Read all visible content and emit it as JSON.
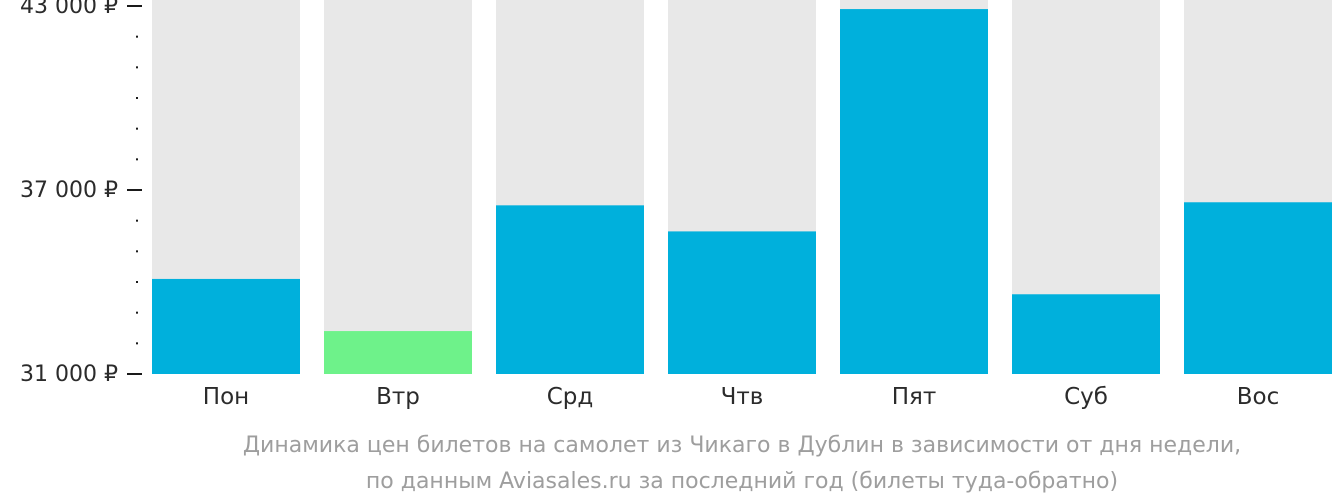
{
  "chart_data": {
    "type": "bar",
    "categories": [
      "Пон",
      "Втр",
      "Срд",
      "Чтв",
      "Пят",
      "Суб",
      "Вос"
    ],
    "values": [
      34100,
      32400,
      36500,
      35650,
      42900,
      33600,
      36600
    ],
    "highlight_index": 1,
    "ylim": [
      31000,
      43000
    ],
    "y_ticks": [
      {
        "value": 43000,
        "label": "43 000 ₽"
      },
      {
        "value": 37000,
        "label": "37 000 ₽"
      },
      {
        "value": 31000,
        "label": "31 000 ₽"
      }
    ],
    "y_minor_tick_step": 1000,
    "colors": {
      "bar": "#00b0dc",
      "highlight": "#6ef28a",
      "background_column": "#e8e8e8",
      "axis": "#1a1a1a"
    },
    "caption": [
      "Динамика цен билетов на самолет из Чикаго в Дублин в зависимости от дня недели,",
      "по данным Aviasales.ru за последний год (билеты туда-обратно)"
    ]
  }
}
